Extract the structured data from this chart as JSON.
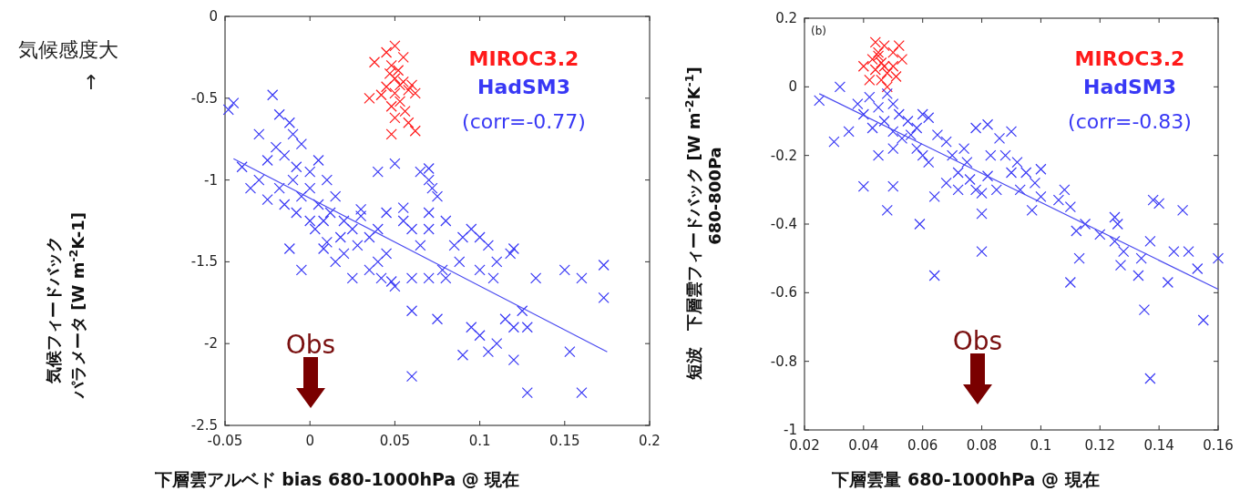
{
  "chart_data": [
    {
      "type": "scatter",
      "xlabel": "下層雲アルベド bias 680-1000hPa @ 現在",
      "ylabel": "気候フィードバックパラメータ  [W m$^{-2}$K-1]",
      "legend": "top right",
      "xlim": [
        -0.05,
        0.2
      ],
      "xticks": [
        -0.05,
        0,
        0.05,
        0.1,
        0.15,
        0.2
      ],
      "ylim": [
        -2.5,
        0
      ],
      "yticks": [
        -2.5,
        -2,
        -1.5,
        -1,
        -0.5,
        0
      ],
      "annotations": [
        "(corr=-0.77)",
        "Obs",
        "気候感度大",
        "↑"
      ],
      "series": [
        {
          "name": "MIROC3.2",
          "color": "#ff1a1a",
          "marker": "cross",
          "x": [
            0.05,
            0.045,
            0.055,
            0.048,
            0.052,
            0.038,
            0.05,
            0.055,
            0.06,
            0.045,
            0.058,
            0.05,
            0.035,
            0.042,
            0.062,
            0.053,
            0.048,
            0.056,
            0.05,
            0.058,
            0.048,
            0.062,
            0.047,
            0.053
          ],
          "values": [
            -0.18,
            -0.22,
            -0.25,
            -0.3,
            -0.33,
            -0.28,
            -0.38,
            -0.4,
            -0.42,
            -0.43,
            -0.45,
            -0.47,
            -0.5,
            -0.48,
            -0.47,
            -0.52,
            -0.55,
            -0.58,
            -0.62,
            -0.65,
            -0.72,
            -0.7,
            -0.35,
            -0.42
          ]
        },
        {
          "name": "HadSM3",
          "color": "#3838f5",
          "marker": "cross",
          "x": [
            -0.048,
            -0.045,
            -0.03,
            -0.022,
            -0.018,
            -0.012,
            -0.01,
            -0.015,
            -0.025,
            -0.03,
            -0.04,
            -0.035,
            -0.02,
            -0.005,
            -0.008,
            0,
            0.005,
            -0.01,
            -0.018,
            -0.025,
            -0.015,
            -0.005,
            0,
            0.005,
            0.01,
            0.012,
            0.008,
            0,
            -0.008,
            0.015,
            0.02,
            0.025,
            0.018,
            0.01,
            0.003,
            0.02,
            0.03,
            0.035,
            0.028,
            0.04,
            0.045,
            0.04,
            0.035,
            0.042,
            0.048,
            0.05,
            0.025,
            0.015,
            -0.012,
            -0.005,
            0.008,
            0.045,
            0.055,
            0.04,
            0.06,
            0.065,
            0.06,
            0.07,
            0.078,
            0.08,
            0.06,
            0.075,
            0.06,
            0.065,
            0.07,
            0.072,
            0.07,
            0.07,
            0.075,
            0.08,
            0.085,
            0.09,
            0.095,
            0.1,
            0.105,
            0.088,
            0.1,
            0.11,
            0.118,
            0.12,
            0.108,
            0.095,
            0.09,
            0.1,
            0.105,
            0.11,
            0.115,
            0.12,
            0.125,
            0.128,
            0.12,
            0.128,
            0.133,
            0.15,
            0.16,
            0.16,
            0.153,
            0.173,
            0.173,
            0.03,
            0.055,
            0.07,
            0.05
          ],
          "values": [
            -0.57,
            -0.53,
            -0.72,
            -0.48,
            -0.6,
            -0.65,
            -0.72,
            -0.85,
            -0.88,
            -1,
            -0.92,
            -1.05,
            -0.8,
            -0.78,
            -0.92,
            -0.95,
            -0.88,
            -1,
            -1.05,
            -1.12,
            -1.15,
            -1.1,
            -1.05,
            -1.15,
            -1,
            -1.2,
            -1.25,
            -1.25,
            -1.2,
            -1.1,
            -1.25,
            -1.3,
            -1.35,
            -1.38,
            -1.3,
            -1.45,
            -1.22,
            -1.35,
            -1.4,
            -1.3,
            -1.45,
            -1.5,
            -1.55,
            -1.6,
            -1.62,
            -1.65,
            -1.6,
            -1.5,
            -1.42,
            -1.55,
            -1.42,
            -1.2,
            -1.25,
            -0.95,
            -1.3,
            -1.4,
            -1.6,
            -1.6,
            -1.55,
            -1.6,
            -1.8,
            -1.85,
            -2.2,
            -0.95,
            -1,
            -1.05,
            -1.2,
            -1.3,
            -1.1,
            -1.25,
            -1.4,
            -1.35,
            -1.3,
            -1.35,
            -1.4,
            -1.5,
            -1.55,
            -1.5,
            -1.45,
            -1.42,
            -1.6,
            -1.9,
            -2.07,
            -1.95,
            -2.05,
            -2,
            -1.85,
            -1.9,
            -1.8,
            -1.9,
            -2.1,
            -2.3,
            -1.6,
            -1.55,
            -2.3,
            -1.6,
            -2.05,
            -1.52,
            -1.72,
            -1.18,
            -1.17,
            -0.93,
            -0.9
          ]
        },
        {
          "type": "line",
          "color": "#4a4af0",
          "x": [
            -0.045,
            0.175
          ],
          "values": [
            -0.87,
            -2.05
          ]
        }
      ]
    },
    {
      "type": "scatter",
      "xlabel": "下層雲量 680-1000hPa @ 現在",
      "ylabel": "短波　下層雲フィードバック [W m$^{-2}$K$^{-1}$]\n680-800Pa",
      "legend": "top right",
      "xlim": [
        0.02,
        0.16
      ],
      "xticks": [
        0.02,
        0.04,
        0.06,
        0.08,
        0.1,
        0.12,
        0.14,
        0.16
      ],
      "ylim": [
        -1,
        0.2
      ],
      "yticks": [
        -1,
        -0.8,
        -0.6,
        -0.4,
        -0.2,
        0,
        0.2
      ],
      "annotations": [
        "(corr=-0.83)",
        "Obs",
        "(b)"
      ],
      "series": [
        {
          "name": "MIROC3.2",
          "color": "#ff1a1a",
          "marker": "cross",
          "x": [
            0.043,
            0.045,
            0.047,
            0.05,
            0.052,
            0.04,
            0.044,
            0.046,
            0.048,
            0.05,
            0.053,
            0.042,
            0.046,
            0.048,
            0.044,
            0.051,
            0.045,
            0.047
          ],
          "values": [
            0.08,
            0.1,
            0.12,
            0.1,
            0.12,
            0.06,
            0.05,
            0.07,
            0.04,
            0.06,
            0.08,
            0.02,
            0.02,
            0,
            0.13,
            0.03,
            0.09,
            0.06
          ]
        },
        {
          "name": "HadSM3",
          "color": "#3838f5",
          "marker": "cross",
          "x": [
            0.025,
            0.032,
            0.03,
            0.035,
            0.038,
            0.04,
            0.042,
            0.045,
            0.047,
            0.043,
            0.048,
            0.05,
            0.052,
            0.05,
            0.055,
            0.053,
            0.056,
            0.058,
            0.06,
            0.062,
            0.045,
            0.05,
            0.058,
            0.06,
            0.062,
            0.065,
            0.068,
            0.07,
            0.072,
            0.075,
            0.068,
            0.072,
            0.076,
            0.078,
            0.08,
            0.082,
            0.04,
            0.048,
            0.05,
            0.059,
            0.064,
            0.064,
            0.08,
            0.08,
            0.085,
            0.083,
            0.086,
            0.09,
            0.088,
            0.09,
            0.092,
            0.095,
            0.098,
            0.1,
            0.093,
            0.1,
            0.097,
            0.108,
            0.106,
            0.11,
            0.115,
            0.112,
            0.11,
            0.113,
            0.12,
            0.125,
            0.126,
            0.125,
            0.127,
            0.128,
            0.133,
            0.134,
            0.135,
            0.137,
            0.138,
            0.14,
            0.137,
            0.143,
            0.145,
            0.148,
            0.15,
            0.153,
            0.155,
            0.16,
            0.078,
            0.082,
            0.074
          ],
          "values": [
            -0.04,
            0,
            -0.16,
            -0.13,
            -0.05,
            -0.08,
            -0.03,
            -0.06,
            -0.1,
            -0.12,
            -0.02,
            -0.05,
            -0.08,
            -0.13,
            -0.1,
            -0.15,
            -0.14,
            -0.12,
            -0.08,
            -0.09,
            -0.2,
            -0.18,
            -0.18,
            -0.2,
            -0.22,
            -0.14,
            -0.16,
            -0.2,
            -0.25,
            -0.22,
            -0.28,
            -0.3,
            -0.27,
            -0.3,
            -0.31,
            -0.26,
            -0.29,
            -0.36,
            -0.29,
            -0.4,
            -0.32,
            -0.55,
            -0.48,
            -0.37,
            -0.3,
            -0.2,
            -0.15,
            -0.13,
            -0.2,
            -0.25,
            -0.22,
            -0.25,
            -0.28,
            -0.32,
            -0.3,
            -0.24,
            -0.36,
            -0.3,
            -0.33,
            -0.35,
            -0.4,
            -0.42,
            -0.57,
            -0.5,
            -0.43,
            -0.38,
            -0.4,
            -0.45,
            -0.52,
            -0.48,
            -0.55,
            -0.5,
            -0.65,
            -0.45,
            -0.33,
            -0.34,
            -0.85,
            -0.57,
            -0.48,
            -0.36,
            -0.48,
            -0.53,
            -0.68,
            -0.5,
            -0.12,
            -0.11,
            -0.18
          ]
        },
        {
          "type": "line",
          "color": "#4a4af0",
          "x": [
            0.025,
            0.16
          ],
          "values": [
            -0.02,
            -0.59
          ]
        }
      ]
    }
  ]
}
